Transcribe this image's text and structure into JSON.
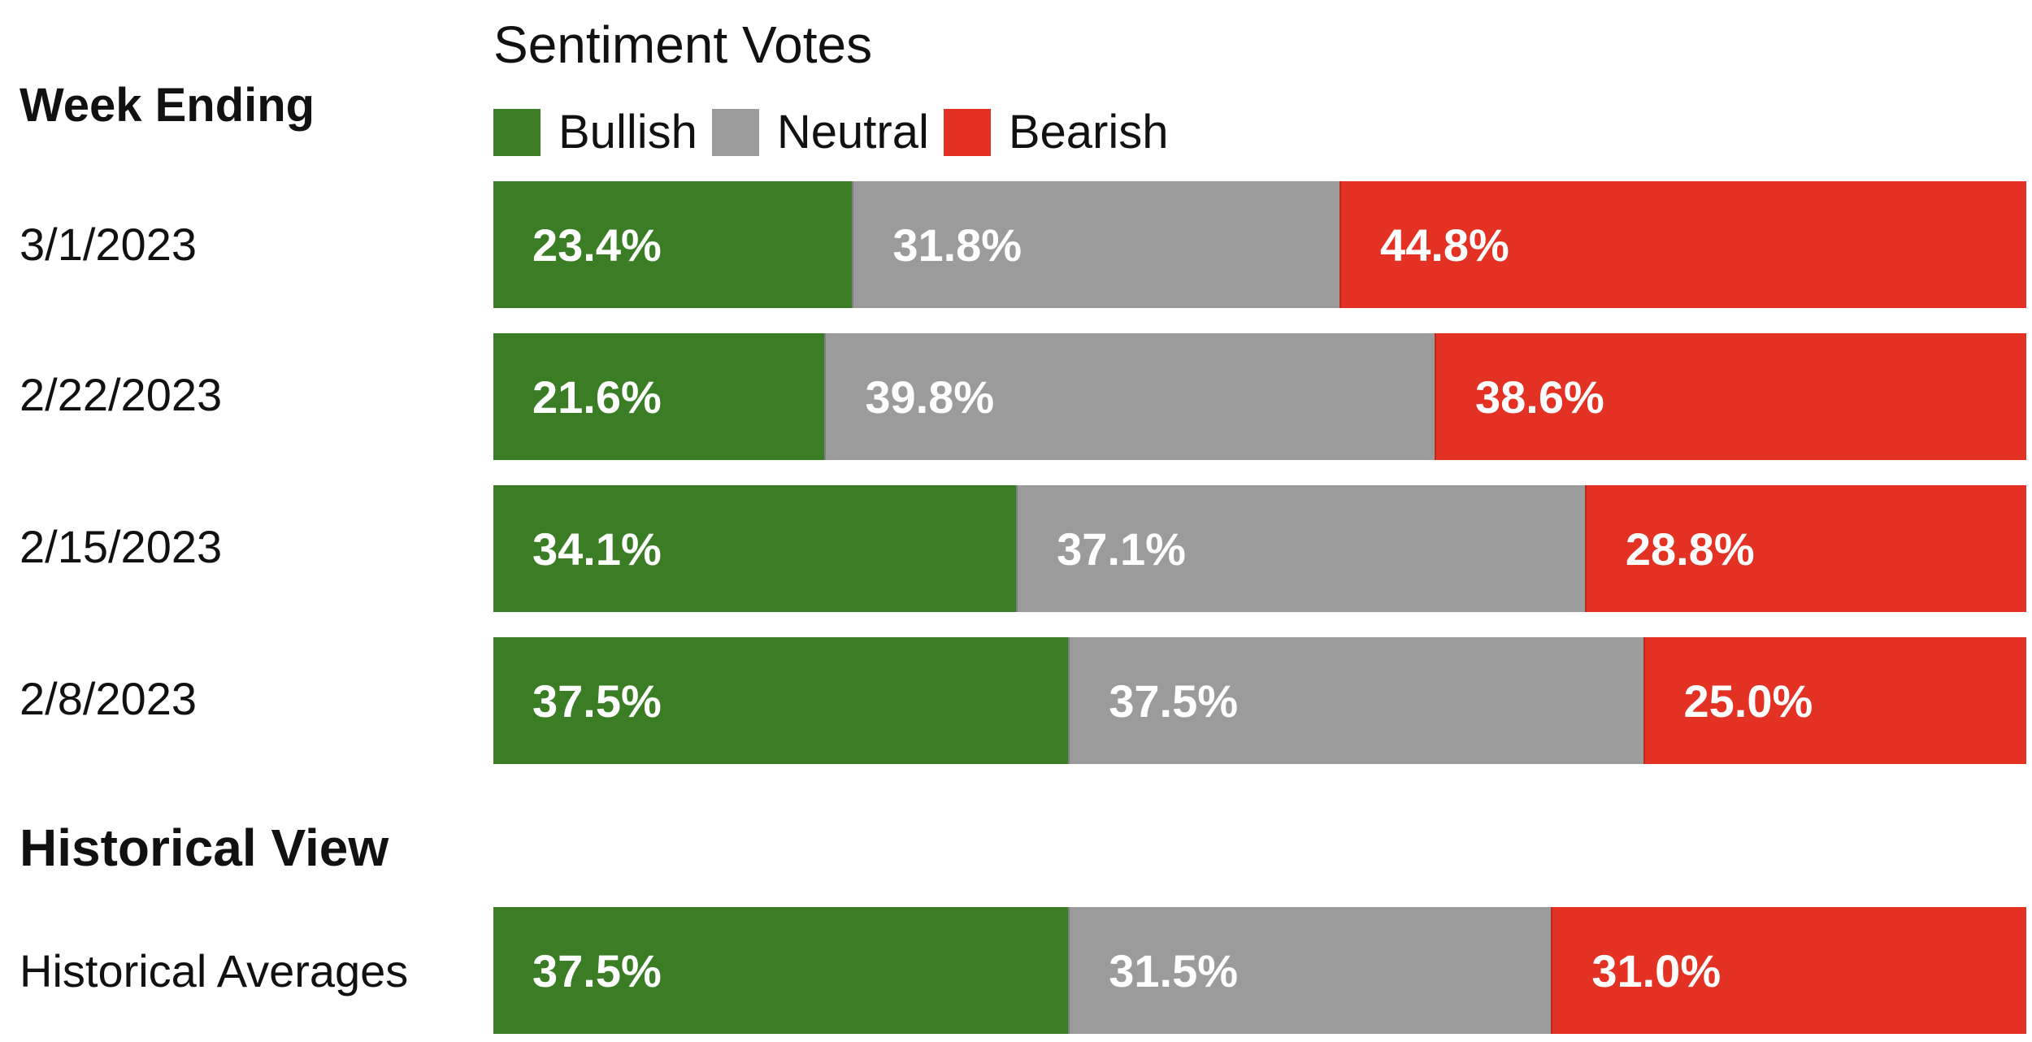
{
  "chart_data": {
    "type": "bar",
    "orientation": "horizontal",
    "stacked": true,
    "title": "Sentiment Votes",
    "section_headings": {
      "weekly": "Week Ending",
      "historical": "Historical View"
    },
    "legend": [
      {
        "name": "Bullish",
        "color": "#3a7d24"
      },
      {
        "name": "Neutral",
        "color": "#9b9b9b"
      },
      {
        "name": "Bearish",
        "color": "#e33224"
      }
    ],
    "xlim": [
      0,
      100
    ],
    "rows": [
      {
        "label": "3/1/2023",
        "values": [
          23.4,
          31.8,
          44.8
        ],
        "value_labels": [
          "23.4%",
          "31.8%",
          "44.8%"
        ]
      },
      {
        "label": "2/22/2023",
        "values": [
          21.6,
          39.8,
          38.6
        ],
        "value_labels": [
          "21.6%",
          "39.8%",
          "38.6%"
        ]
      },
      {
        "label": "2/15/2023",
        "values": [
          34.1,
          37.1,
          28.8
        ],
        "value_labels": [
          "34.1%",
          "37.1%",
          "28.8%"
        ]
      },
      {
        "label": "2/8/2023",
        "values": [
          37.5,
          37.5,
          25.0
        ],
        "value_labels": [
          "37.5%",
          "37.5%",
          "25.0%"
        ]
      },
      {
        "label": "Historical Averages",
        "values": [
          37.5,
          31.5,
          31.0
        ],
        "value_labels": [
          "37.5%",
          "31.5%",
          "31.0%"
        ]
      }
    ]
  }
}
